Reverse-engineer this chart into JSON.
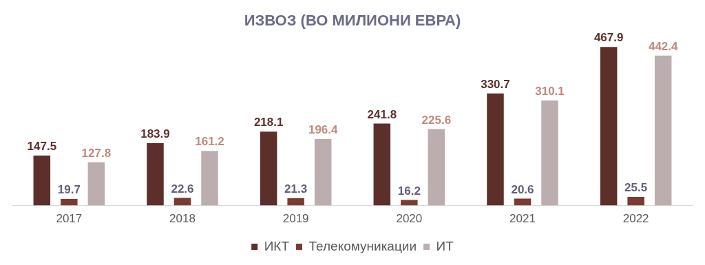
{
  "chart_data": {
    "type": "bar",
    "title": "ИЗВОЗ (ВО МИЛИОНИ ЕВРА)",
    "categories": [
      "2017",
      "2018",
      "2019",
      "2020",
      "2021",
      "2022"
    ],
    "series": [
      {
        "name": "ИКТ",
        "color": "#5c2f2a",
        "values": [
          147.5,
          183.9,
          218.1,
          241.8,
          330.7,
          467.9
        ]
      },
      {
        "name": "Телекомуникации",
        "color": "#7b3b31",
        "values": [
          19.7,
          22.6,
          21.3,
          16.2,
          20.6,
          25.5
        ]
      },
      {
        "name": "ИТ",
        "color": "#bcaeae",
        "values": [
          127.8,
          161.2,
          196.4,
          225.6,
          310.1,
          442.4
        ]
      }
    ],
    "data_labels": true,
    "legend": "bottom",
    "grid": false
  }
}
